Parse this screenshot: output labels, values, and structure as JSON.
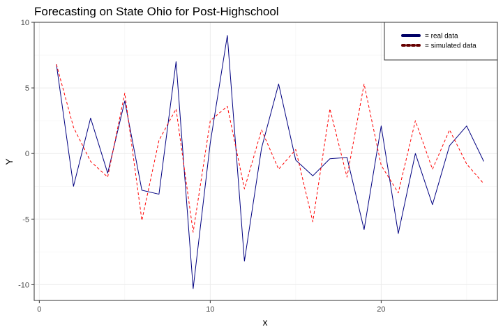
{
  "chart_data": {
    "type": "line",
    "title": "Forecasting on State Ohio for Post-Highschool",
    "xlabel": "x",
    "ylabel": "Y",
    "xlim": [
      -0.3,
      26.8
    ],
    "ylim": [
      -11.2,
      10.0
    ],
    "x_ticks": [
      0,
      10,
      20
    ],
    "y_ticks": [
      -10,
      -5,
      0,
      5,
      10
    ],
    "grid": true,
    "legend_position": "top-right",
    "series": [
      {
        "name": "= real data",
        "color": "#000080",
        "line_style": "solid",
        "x": [
          1,
          2,
          3,
          4,
          5,
          6,
          7,
          8,
          9,
          10,
          11,
          12,
          13,
          14,
          15,
          16,
          17,
          18,
          19,
          20,
          21,
          22,
          23,
          24,
          25,
          26
        ],
        "y": [
          6.8,
          -2.5,
          2.7,
          -1.5,
          4.0,
          -2.8,
          -3.1,
          7.0,
          -10.3,
          0.8,
          9.0,
          -8.2,
          0.4,
          5.3,
          -0.5,
          -1.7,
          -0.4,
          -0.3,
          -5.8,
          2.1,
          -6.1,
          0.0,
          -3.9,
          0.6,
          2.1,
          -0.6
        ]
      },
      {
        "name": "= simulated data",
        "color": "#ff0000",
        "line_style": "dashed",
        "x": [
          1,
          2,
          3,
          4,
          5,
          6,
          7,
          8,
          9,
          10,
          11,
          12,
          13,
          14,
          15,
          16,
          17,
          18,
          19,
          20,
          21,
          22,
          23,
          24,
          25,
          26
        ],
        "y": [
          6.8,
          2.0,
          -0.6,
          -1.8,
          4.6,
          -5.1,
          1.0,
          3.4,
          -6.0,
          2.5,
          3.6,
          -2.7,
          1.8,
          -1.2,
          0.3,
          -5.2,
          3.4,
          -1.8,
          5.3,
          -0.9,
          -3.0,
          2.5,
          -1.2,
          1.8,
          -0.8,
          -2.3
        ]
      }
    ]
  }
}
